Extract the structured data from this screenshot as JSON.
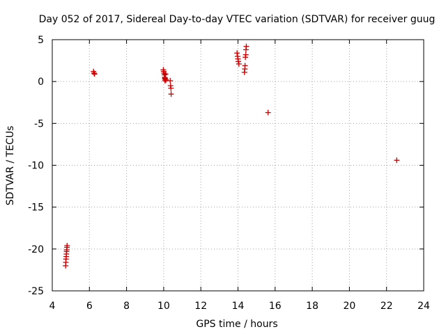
{
  "chart_data": {
    "type": "scatter",
    "title": "Day 052 of 2017, Sidereal Day-to-day VTEC variation (SDTVAR) for receiver guug",
    "xlabel": "GPS time / hours",
    "ylabel": "SDTVAR / TECUs",
    "xlim": [
      4,
      24
    ],
    "ylim": [
      -25,
      5
    ],
    "xticks": [
      4,
      6,
      8,
      10,
      12,
      14,
      16,
      18,
      20,
      22,
      24
    ],
    "yticks": [
      5,
      0,
      -5,
      -10,
      -15,
      -20,
      -25
    ],
    "grid": true,
    "marker": "+",
    "series": [
      {
        "name": "SDTVAR",
        "color": "#cc0000",
        "x": [
          4.72,
          4.73,
          4.74,
          4.75,
          4.76,
          4.77,
          4.78,
          4.79,
          4.8,
          6.22,
          6.25,
          6.28,
          9.98,
          10.0,
          10.02,
          10.04,
          10.05,
          10.06,
          10.07,
          10.08,
          10.1,
          10.12,
          10.35,
          10.37,
          10.39,
          10.4,
          13.95,
          13.98,
          14.0,
          14.02,
          14.05,
          14.35,
          14.37,
          14.38,
          14.4,
          14.42,
          14.43,
          14.45,
          15.62,
          22.55
        ],
        "y": [
          -22.0,
          -21.6,
          -21.2,
          -20.9,
          -20.6,
          -20.3,
          -20.1,
          -19.8,
          -19.6,
          1.2,
          1.0,
          0.9,
          1.4,
          1.2,
          1.0,
          0.8,
          0.5,
          0.3,
          0.1,
          0.4,
          0.9,
          0.2,
          0.1,
          -0.5,
          -0.8,
          -1.5,
          3.4,
          3.0,
          2.7,
          2.4,
          2.1,
          1.1,
          1.5,
          1.9,
          2.9,
          3.2,
          3.8,
          4.2,
          -3.7,
          -9.4
        ]
      }
    ]
  }
}
